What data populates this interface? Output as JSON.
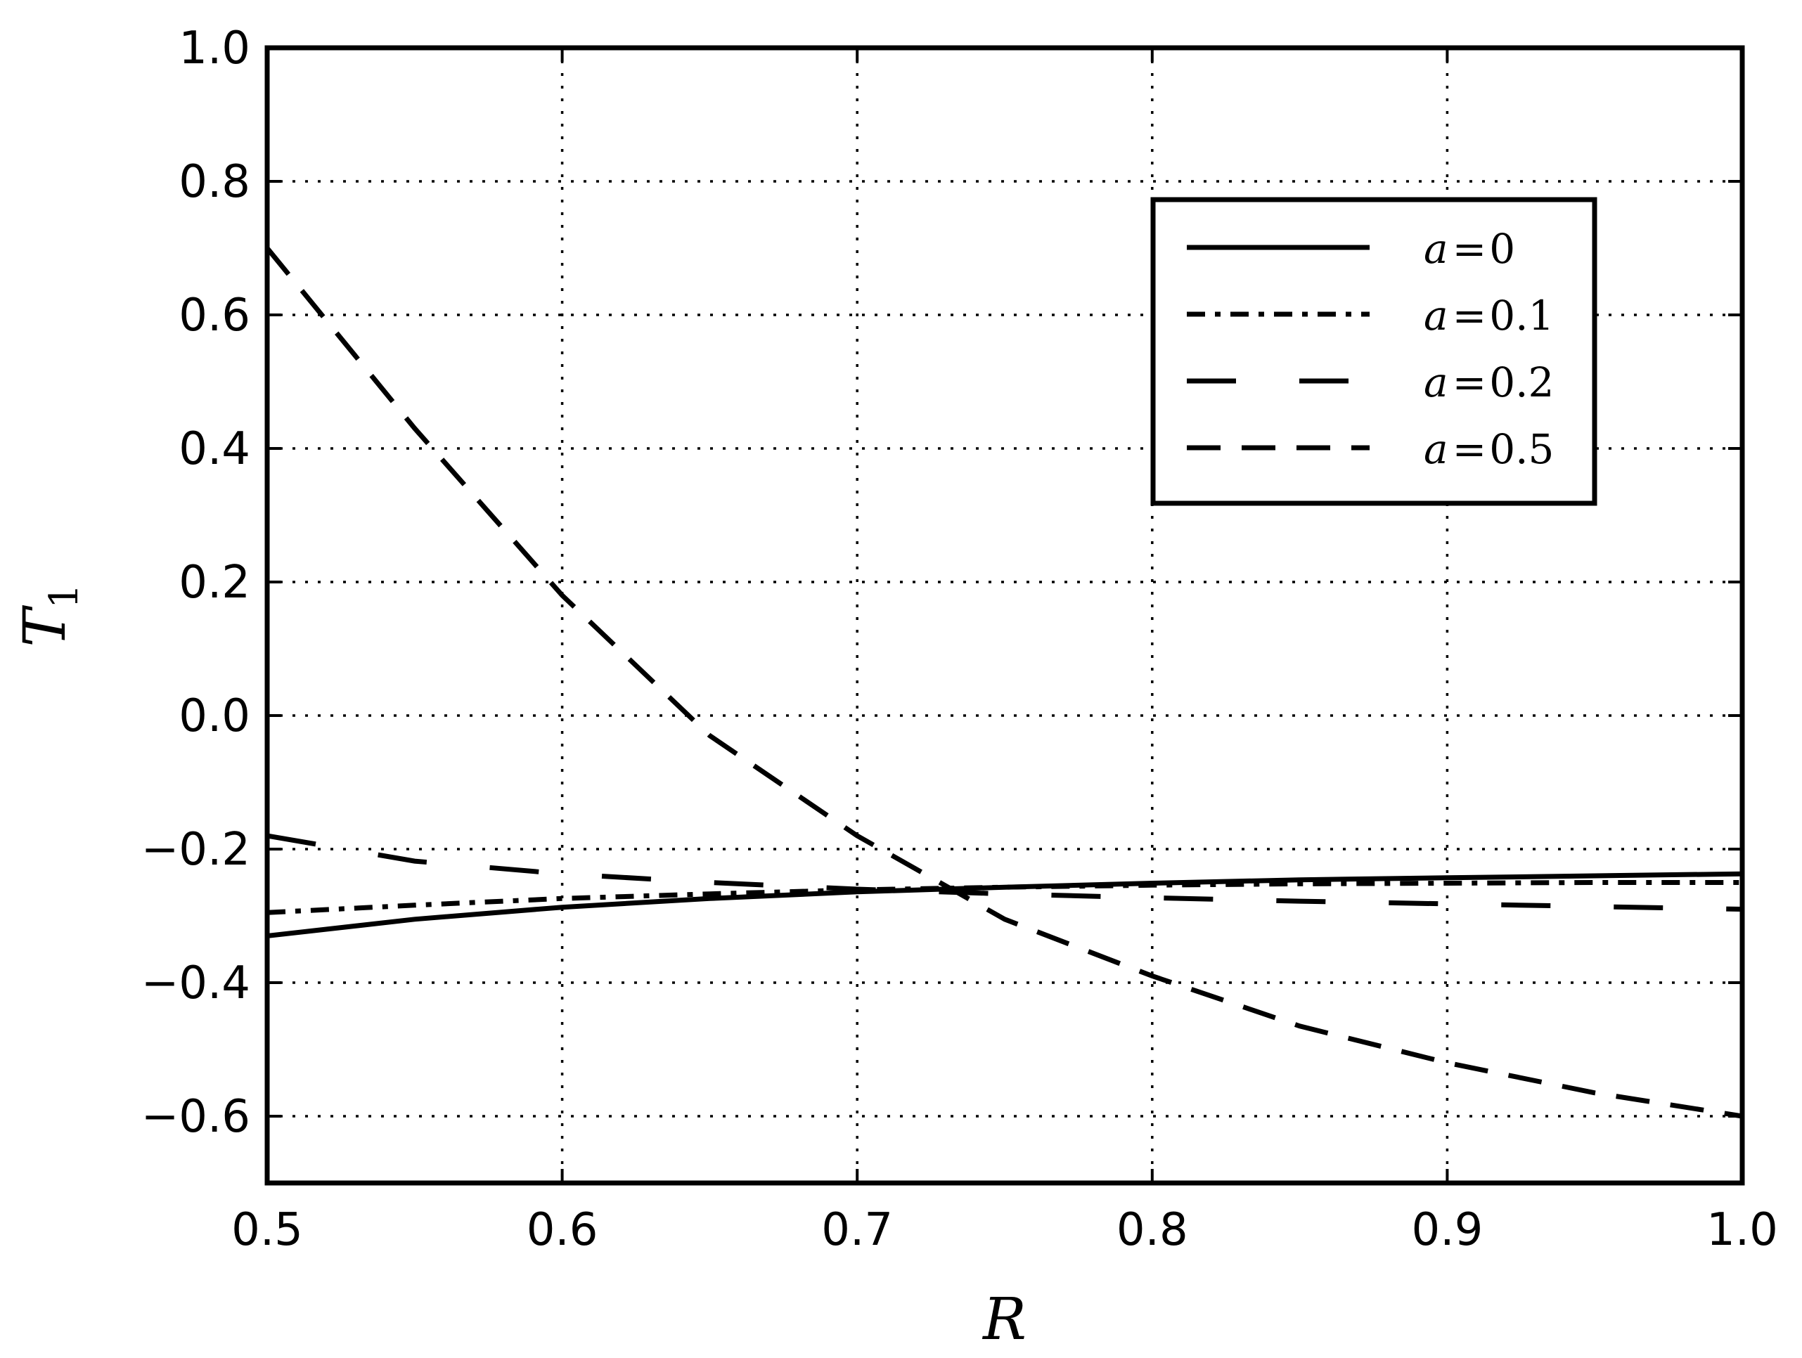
{
  "chart_data": {
    "type": "line",
    "xlabel": "R",
    "ylabel": "T",
    "ylabel_subscript": "1",
    "xlim": [
      0.5,
      1.0
    ],
    "ylim": [
      -0.7,
      1.0
    ],
    "xticks": [
      0.5,
      0.6,
      0.7,
      0.8,
      0.9,
      1.0
    ],
    "xtick_labels": [
      "0.5",
      "0.6",
      "0.7",
      "0.8",
      "0.9",
      "1.0"
    ],
    "yticks": [
      -0.6,
      -0.4,
      -0.2,
      0.0,
      0.2,
      0.4,
      0.6,
      0.8,
      1.0
    ],
    "ytick_labels": [
      "−0.6",
      "−0.4",
      "−0.2",
      "0.0",
      "0.2",
      "0.4",
      "0.6",
      "0.8",
      "1.0"
    ],
    "grid": true,
    "legend_position": "top-right",
    "series": [
      {
        "name": "a = 0",
        "var": "a",
        "eq": "=",
        "value": "0",
        "style": "solid",
        "x": [
          0.5,
          0.55,
          0.6,
          0.65,
          0.7,
          0.75,
          0.8,
          0.85,
          0.9,
          0.95,
          1.0
        ],
        "y": [
          -0.33,
          -0.305,
          -0.287,
          -0.274,
          -0.264,
          -0.257,
          -0.251,
          -0.246,
          -0.243,
          -0.24,
          -0.237
        ]
      },
      {
        "name": "a = 0.1",
        "var": "a",
        "eq": "=",
        "value": "0.1",
        "style": "dashdot",
        "x": [
          0.5,
          0.55,
          0.6,
          0.65,
          0.7,
          0.75,
          0.8,
          0.85,
          0.9,
          0.95,
          1.0
        ],
        "y": [
          -0.295,
          -0.284,
          -0.274,
          -0.267,
          -0.261,
          -0.257,
          -0.254,
          -0.252,
          -0.251,
          -0.25,
          -0.25
        ]
      },
      {
        "name": "a = 0.2",
        "var": "a",
        "eq": "=",
        "value": "0.2",
        "style": "longdash",
        "x": [
          0.5,
          0.55,
          0.6,
          0.65,
          0.7,
          0.75,
          0.8,
          0.85,
          0.9,
          0.95,
          1.0
        ],
        "y": [
          -0.18,
          -0.218,
          -0.237,
          -0.25,
          -0.26,
          -0.267,
          -0.273,
          -0.278,
          -0.282,
          -0.286,
          -0.29
        ]
      },
      {
        "name": "a = 0.5",
        "var": "a",
        "eq": "=",
        "value": "0.5",
        "style": "dashed",
        "x": [
          0.5,
          0.55,
          0.6,
          0.65,
          0.7,
          0.75,
          0.8,
          0.85,
          0.9,
          0.95,
          1.0
        ],
        "y": [
          0.7,
          0.43,
          0.18,
          -0.03,
          -0.18,
          -0.305,
          -0.39,
          -0.465,
          -0.52,
          -0.565,
          -0.6
        ]
      }
    ]
  }
}
